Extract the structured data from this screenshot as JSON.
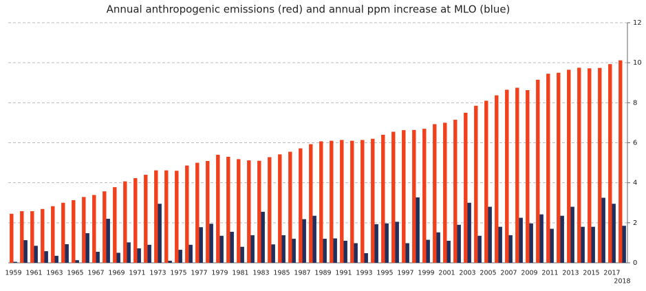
{
  "chart_data": {
    "type": "bar",
    "title": "Annual anthropogenic emissions (red) and annual ppm increase at MLO (blue)",
    "categories": [
      "1959",
      null,
      "1961",
      null,
      "1963",
      null,
      "1965",
      null,
      "1967",
      null,
      "1969",
      null,
      "1971",
      null,
      "1973",
      null,
      "1975",
      null,
      "1977",
      null,
      "1979",
      null,
      "1981",
      null,
      "1983",
      null,
      "1985",
      null,
      "1987",
      null,
      "1989",
      null,
      "1991",
      null,
      "1993",
      null,
      "1995",
      null,
      "1997",
      null,
      "1999",
      null,
      "2001",
      null,
      "2003",
      null,
      "2005",
      null,
      "2007",
      null,
      "2009",
      null,
      "2011",
      null,
      "2013",
      null,
      "2015",
      null,
      "2017",
      "2018"
    ],
    "series": [
      {
        "color": "#f0401c",
        "values": [
          2.45,
          2.58,
          2.58,
          2.69,
          2.83,
          3.0,
          3.13,
          3.29,
          3.39,
          3.57,
          3.78,
          4.07,
          4.23,
          4.4,
          4.62,
          4.62,
          4.6,
          4.86,
          5.0,
          5.09,
          5.4,
          5.3,
          5.18,
          5.12,
          5.1,
          5.28,
          5.42,
          5.55,
          5.72,
          5.93,
          6.07,
          6.1,
          6.14,
          6.1,
          6.14,
          6.2,
          6.4,
          6.55,
          6.63,
          6.64,
          6.7,
          6.93,
          7.0,
          7.15,
          7.5,
          7.85,
          8.1,
          8.37,
          8.65,
          8.75,
          8.63,
          9.15,
          9.45,
          9.5,
          9.65,
          9.75,
          9.72,
          9.74,
          9.93,
          10.12
        ]
      },
      {
        "color": "#1f2f5e",
        "values": [
          0.05,
          1.13,
          0.85,
          0.58,
          0.35,
          0.93,
          0.13,
          1.48,
          0.55,
          2.2,
          0.5,
          1.02,
          0.72,
          0.9,
          2.95,
          0.1,
          0.65,
          0.9,
          1.78,
          1.95,
          1.35,
          1.55,
          0.8,
          1.38,
          2.55,
          0.92,
          1.38,
          1.2,
          2.18,
          2.35,
          1.2,
          1.22,
          1.1,
          0.98,
          0.48,
          1.93,
          1.97,
          2.05,
          0.98,
          3.27,
          1.15,
          1.52,
          1.1,
          1.9,
          3.0,
          1.35,
          2.8,
          1.8,
          1.38,
          2.25,
          1.97,
          2.42,
          1.7,
          2.35,
          2.8,
          1.8,
          1.8,
          3.25,
          2.95,
          1.85
        ]
      }
    ],
    "ylim": [
      0,
      12
    ],
    "yticks": [
      0,
      2,
      4,
      6,
      8,
      10,
      12
    ],
    "grid": true
  }
}
